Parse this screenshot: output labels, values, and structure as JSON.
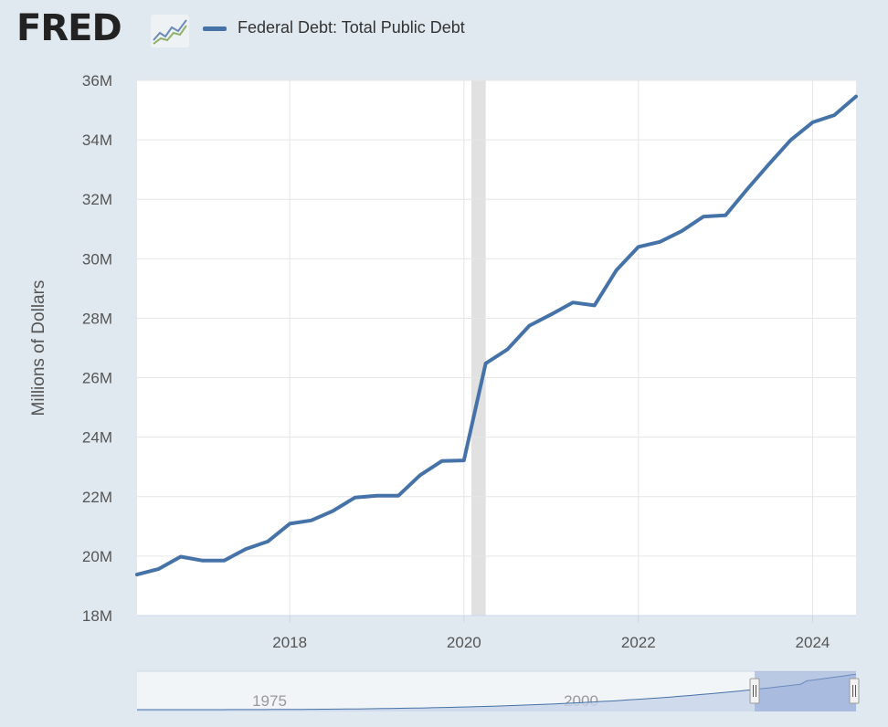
{
  "header": {
    "logo": "FRED",
    "logo_icon": "trend-lines-icon",
    "legend_label": "Federal Debt: Total Public Debt"
  },
  "colors": {
    "series": "#4572a7",
    "recession": "#e1e1e1",
    "navigator_fill": "#8aa3d2",
    "page_bg": "#e1e9f0"
  },
  "chart_data": {
    "type": "line",
    "title": "",
    "xlabel": "",
    "ylabel": "Millions of Dollars",
    "ylim": [
      18,
      36
    ],
    "y_ticks": [
      {
        "value": 18,
        "label": "18M"
      },
      {
        "value": 20,
        "label": "20M"
      },
      {
        "value": 22,
        "label": "22M"
      },
      {
        "value": 24,
        "label": "24M"
      },
      {
        "value": 26,
        "label": "26M"
      },
      {
        "value": 28,
        "label": "28M"
      },
      {
        "value": 30,
        "label": "30M"
      },
      {
        "value": 32,
        "label": "32M"
      },
      {
        "value": 34,
        "label": "34M"
      },
      {
        "value": 36,
        "label": "36M"
      }
    ],
    "xlim": [
      "2016-04-01",
      "2024-07-01"
    ],
    "x_ticks": [
      {
        "date": "2018-01-01",
        "label": "2018"
      },
      {
        "date": "2020-01-01",
        "label": "2020"
      },
      {
        "date": "2022-01-01",
        "label": "2022"
      },
      {
        "date": "2024-01-01",
        "label": "2024"
      }
    ],
    "recession": {
      "start": "2020-02-01",
      "end": "2020-04-01"
    },
    "grid": true,
    "legend": "top-left",
    "series": [
      {
        "name": "Federal Debt: Total Public Debt",
        "points": [
          [
            "2016-04-01",
            19.38
          ],
          [
            "2016-07-01",
            19.57
          ],
          [
            "2016-10-01",
            19.98
          ],
          [
            "2017-01-01",
            19.85
          ],
          [
            "2017-04-01",
            19.85
          ],
          [
            "2017-07-01",
            20.24
          ],
          [
            "2017-10-01",
            20.49
          ],
          [
            "2018-01-01",
            21.09
          ],
          [
            "2018-04-01",
            21.2
          ],
          [
            "2018-07-01",
            21.52
          ],
          [
            "2018-10-01",
            21.97
          ],
          [
            "2019-01-01",
            22.03
          ],
          [
            "2019-04-01",
            22.03
          ],
          [
            "2019-07-01",
            22.72
          ],
          [
            "2019-10-01",
            23.2
          ],
          [
            "2020-01-01",
            23.22
          ],
          [
            "2020-04-01",
            26.48
          ],
          [
            "2020-07-01",
            26.95
          ],
          [
            "2020-10-01",
            27.75
          ],
          [
            "2021-01-01",
            28.13
          ],
          [
            "2021-04-01",
            28.53
          ],
          [
            "2021-07-01",
            28.43
          ],
          [
            "2021-10-01",
            29.62
          ],
          [
            "2022-01-01",
            30.4
          ],
          [
            "2022-04-01",
            30.57
          ],
          [
            "2022-07-01",
            30.93
          ],
          [
            "2022-10-01",
            31.42
          ],
          [
            "2023-01-01",
            31.46
          ],
          [
            "2023-04-01",
            32.33
          ],
          [
            "2023-07-01",
            33.17
          ],
          [
            "2023-10-01",
            33.99
          ],
          [
            "2024-01-01",
            34.59
          ],
          [
            "2024-04-01",
            34.83
          ],
          [
            "2024-07-01",
            35.46
          ]
        ]
      }
    ],
    "navigator": {
      "labels": [
        "1975",
        "2000"
      ],
      "range_start": "1966-01-01",
      "range_end": "2024-07-01",
      "selected": [
        "2016-04-01",
        "2024-07-01"
      ]
    }
  }
}
